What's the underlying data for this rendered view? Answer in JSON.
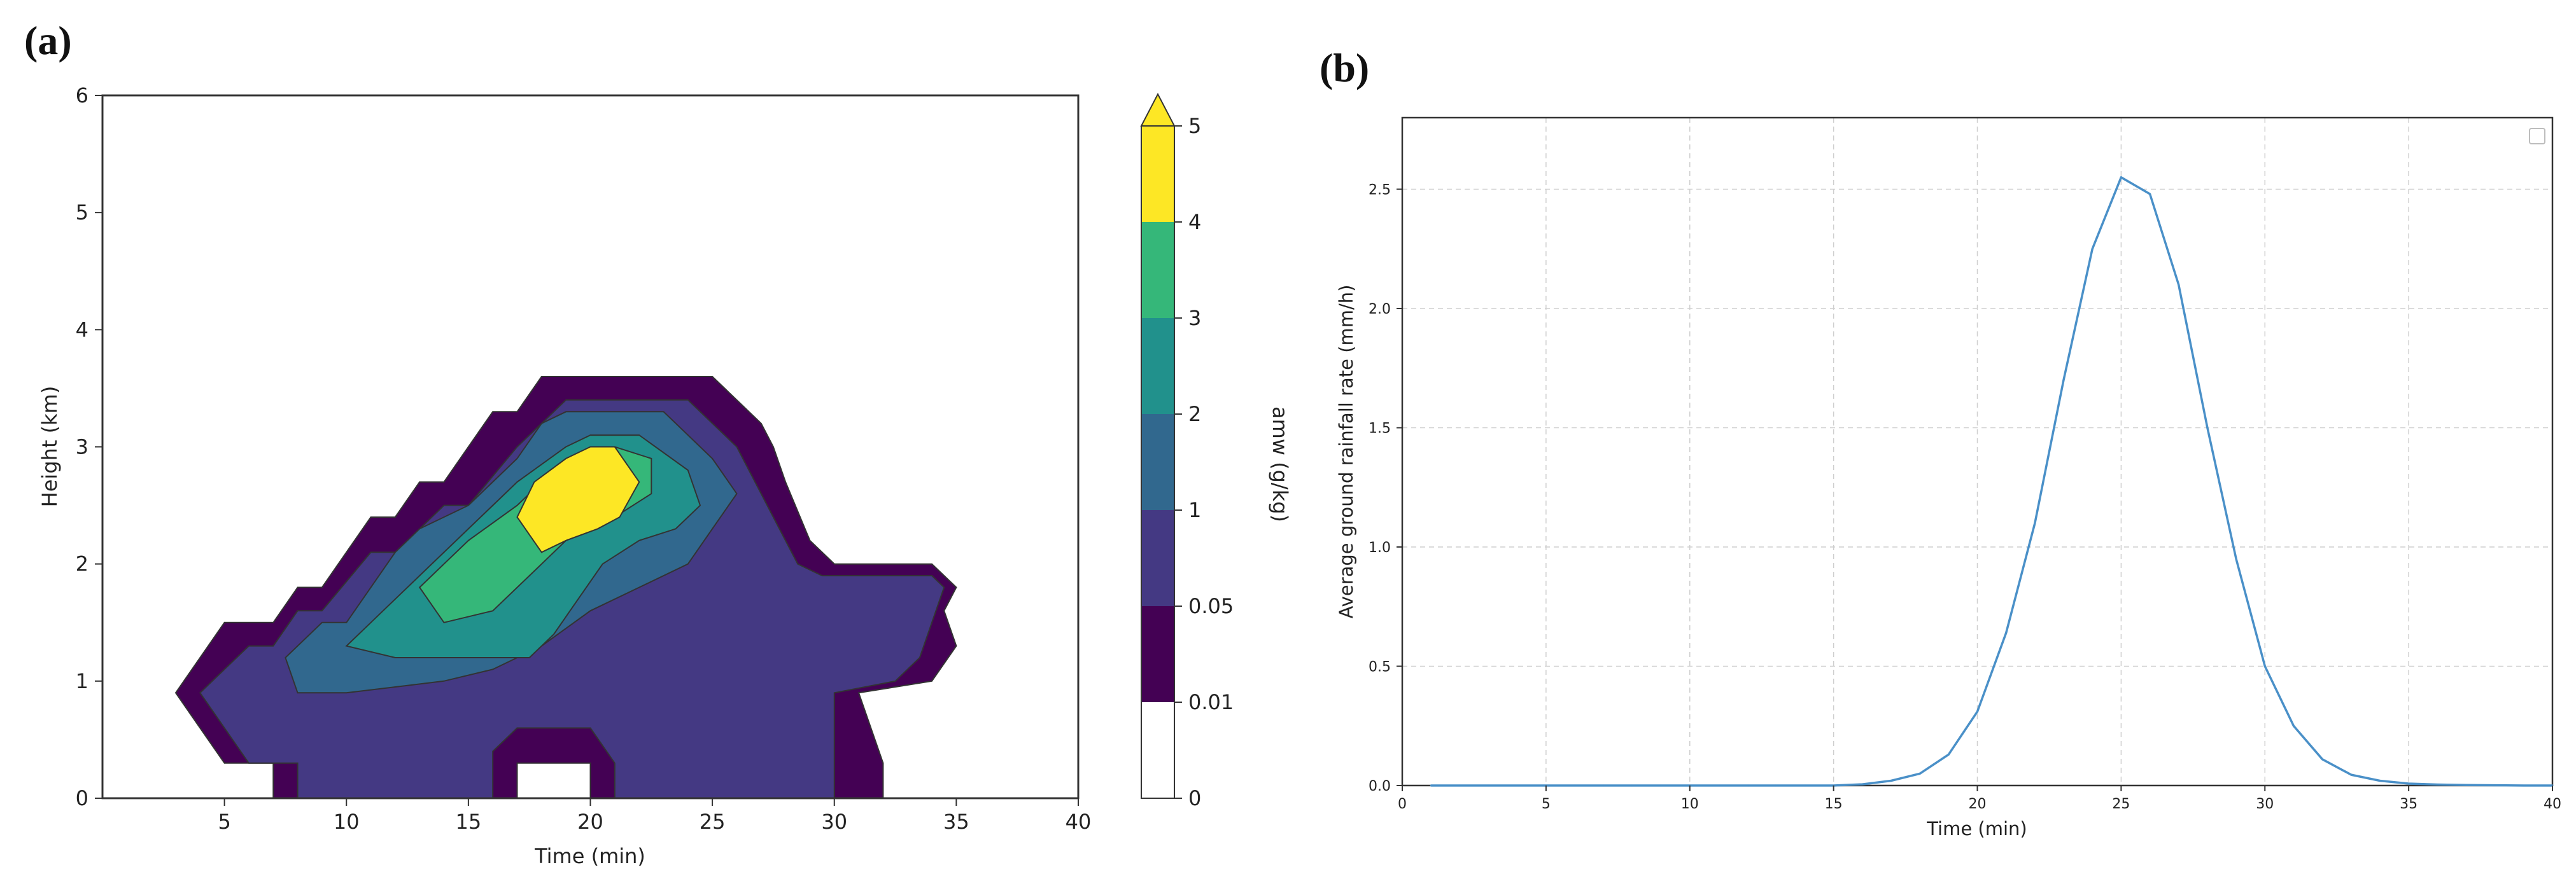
{
  "panels": {
    "a_label": "(a)",
    "b_label": "(b)"
  },
  "chart_data": [
    {
      "type": "heatmap",
      "panel": "(a)",
      "xlabel": "Time (min)",
      "ylabel": "Height (km)",
      "xlim": [
        0,
        40
      ],
      "ylim": [
        0,
        6
      ],
      "xticks": [
        "5",
        "10",
        "15",
        "20",
        "25",
        "30",
        "35",
        "40"
      ],
      "yticks": [
        "0",
        "1",
        "2",
        "3",
        "4",
        "5",
        "6"
      ],
      "colorbar": {
        "label": "amw (g/kg)",
        "levels": [
          "0",
          "0.01",
          "0.05",
          "1",
          "2",
          "3",
          "4",
          "5"
        ],
        "colors": [
          "#ffffff",
          "#440154",
          "#443983",
          "#31688e",
          "#21918c",
          "#35b779",
          "#fde725"
        ],
        "extend": "max"
      },
      "regions": [
        {
          "level": "0.01–0.05",
          "color": "#440154",
          "outline": [
            [
              3,
              0.9
            ],
            [
              5,
              1.5
            ],
            [
              7,
              1.5
            ],
            [
              8,
              1.8
            ],
            [
              9,
              1.8
            ],
            [
              11,
              2.4
            ],
            [
              12,
              2.4
            ],
            [
              13,
              2.7
            ],
            [
              14,
              2.7
            ],
            [
              16,
              3.3
            ],
            [
              17,
              3.3
            ],
            [
              18,
              3.6
            ],
            [
              25,
              3.6
            ],
            [
              27,
              3.2
            ],
            [
              27.5,
              3
            ],
            [
              28,
              2.7
            ],
            [
              29,
              2.2
            ],
            [
              30,
              2
            ],
            [
              34,
              2
            ],
            [
              35,
              1.8
            ],
            [
              34.5,
              1.6
            ],
            [
              35,
              1.3
            ],
            [
              34,
              1
            ],
            [
              31,
              0.9
            ],
            [
              32,
              0.3
            ],
            [
              32,
              0
            ],
            [
              7,
              0
            ],
            [
              7,
              0.3
            ],
            [
              5,
              0.3
            ],
            [
              3,
              0.9
            ]
          ]
        },
        {
          "level": "0.05–1",
          "color": "#443983",
          "outline": [
            [
              4,
              0.9
            ],
            [
              6,
              1.3
            ],
            [
              7,
              1.3
            ],
            [
              8,
              1.6
            ],
            [
              9,
              1.6
            ],
            [
              11,
              2.1
            ],
            [
              12,
              2.1
            ],
            [
              14,
              2.5
            ],
            [
              15,
              2.5
            ],
            [
              17,
              3
            ],
            [
              18,
              3.2
            ],
            [
              19,
              3.4
            ],
            [
              24,
              3.4
            ],
            [
              26,
              3
            ],
            [
              27.5,
              2.4
            ],
            [
              28.5,
              2
            ],
            [
              29.5,
              1.9
            ],
            [
              34,
              1.9
            ],
            [
              34.5,
              1.8
            ],
            [
              34,
              1.5
            ],
            [
              33.5,
              1.2
            ],
            [
              32.5,
              1
            ],
            [
              30,
              0.9
            ],
            [
              30,
              0
            ],
            [
              21,
              0
            ],
            [
              21,
              0.3
            ],
            [
              20,
              0.6
            ],
            [
              18.5,
              0.6
            ],
            [
              17,
              0.6
            ],
            [
              16,
              0.4
            ],
            [
              16,
              0
            ],
            [
              8,
              0
            ],
            [
              8,
              0.3
            ],
            [
              6,
              0.3
            ],
            [
              4,
              0.9
            ]
          ]
        },
        {
          "level": "1–2",
          "color": "#31688e",
          "outline": [
            [
              7.5,
              1.2
            ],
            [
              9,
              1.5
            ],
            [
              10,
              1.5
            ],
            [
              12,
              2.1
            ],
            [
              13,
              2.3
            ],
            [
              15,
              2.5
            ],
            [
              17,
              2.9
            ],
            [
              18,
              3.2
            ],
            [
              19,
              3.3
            ],
            [
              23,
              3.3
            ],
            [
              25,
              2.9
            ],
            [
              26,
              2.6
            ],
            [
              25,
              2.3
            ],
            [
              24,
              2
            ],
            [
              22,
              1.8
            ],
            [
              20,
              1.6
            ],
            [
              18,
              1.3
            ],
            [
              17,
              1.2
            ],
            [
              16,
              1.1
            ],
            [
              14,
              1
            ],
            [
              10,
              0.9
            ],
            [
              8,
              0.9
            ],
            [
              7.5,
              1.2
            ]
          ]
        },
        {
          "level": "2–3",
          "color": "#21918c",
          "outline": [
            [
              10,
              1.3
            ],
            [
              11,
              1.5
            ],
            [
              13,
              1.9
            ],
            [
              15,
              2.3
            ],
            [
              17,
              2.7
            ],
            [
              19,
              3
            ],
            [
              20,
              3.1
            ],
            [
              22,
              3.1
            ],
            [
              24,
              2.8
            ],
            [
              24.5,
              2.5
            ],
            [
              23.5,
              2.3
            ],
            [
              22,
              2.2
            ],
            [
              20.5,
              2
            ],
            [
              19.5,
              1.7
            ],
            [
              18.5,
              1.4
            ],
            [
              17.5,
              1.2
            ],
            [
              16,
              1.2
            ],
            [
              12,
              1.2
            ],
            [
              10,
              1.3
            ]
          ]
        },
        {
          "level": "3–4",
          "color": "#35b779",
          "outline": [
            [
              13,
              1.8
            ],
            [
              14,
              2
            ],
            [
              15,
              2.2
            ],
            [
              17,
              2.5
            ],
            [
              19,
              2.9
            ],
            [
              21,
              3
            ],
            [
              22.5,
              2.9
            ],
            [
              22.5,
              2.6
            ],
            [
              21,
              2.4
            ],
            [
              19.5,
              2.3
            ],
            [
              18,
              2
            ],
            [
              16,
              1.6
            ],
            [
              14,
              1.5
            ],
            [
              13,
              1.8
            ]
          ]
        },
        {
          "level": "4–5",
          "color": "#fde725",
          "outline": [
            [
              17,
              2.4
            ],
            [
              17.7,
              2.7
            ],
            [
              19,
              2.9
            ],
            [
              20,
              3
            ],
            [
              21,
              3
            ],
            [
              22,
              2.7
            ],
            [
              21.2,
              2.4
            ],
            [
              20.3,
              2.3
            ],
            [
              19,
              2.2
            ],
            [
              18,
              2.1
            ],
            [
              17,
              2.4
            ]
          ]
        },
        {
          "level": "0–0.01",
          "color": "#ffffff",
          "outline": [
            [
              17,
              0
            ],
            [
              20,
              0
            ],
            [
              20,
              0.3
            ],
            [
              17,
              0.3
            ]
          ]
        }
      ]
    },
    {
      "type": "line",
      "panel": "(b)",
      "xlabel": "Time (min)",
      "ylabel": "Average ground rainfall rate (mm/h)",
      "xlim": [
        0,
        40
      ],
      "ylim": [
        0,
        2.8
      ],
      "xticks": [
        "0",
        "5",
        "10",
        "15",
        "20",
        "25",
        "30",
        "35",
        "40"
      ],
      "yticks": [
        "0.0",
        "0.5",
        "1.0",
        "1.5",
        "2.0",
        "2.5"
      ],
      "grid": true,
      "series": [
        {
          "color": "#4a90c8",
          "x": [
            1,
            2,
            3,
            4,
            5,
            6,
            7,
            8,
            9,
            10,
            11,
            12,
            13,
            14,
            15,
            16,
            17,
            18,
            19,
            20,
            21,
            22,
            23,
            24,
            25,
            26,
            27,
            28,
            29,
            30,
            31,
            32,
            33,
            34,
            35,
            36,
            37,
            38,
            39,
            40
          ],
          "y": [
            0,
            0,
            0,
            0,
            0,
            0,
            0,
            0,
            0,
            0,
            0,
            0,
            0,
            0,
            0,
            0.005,
            0.02,
            0.05,
            0.13,
            0.31,
            0.64,
            1.1,
            1.7,
            2.25,
            2.55,
            2.48,
            2.1,
            1.5,
            0.95,
            0.5,
            0.25,
            0.11,
            0.045,
            0.02,
            0.008,
            0.004,
            0.002,
            0.001,
            0,
            0
          ]
        }
      ],
      "legend": "top-right"
    }
  ]
}
